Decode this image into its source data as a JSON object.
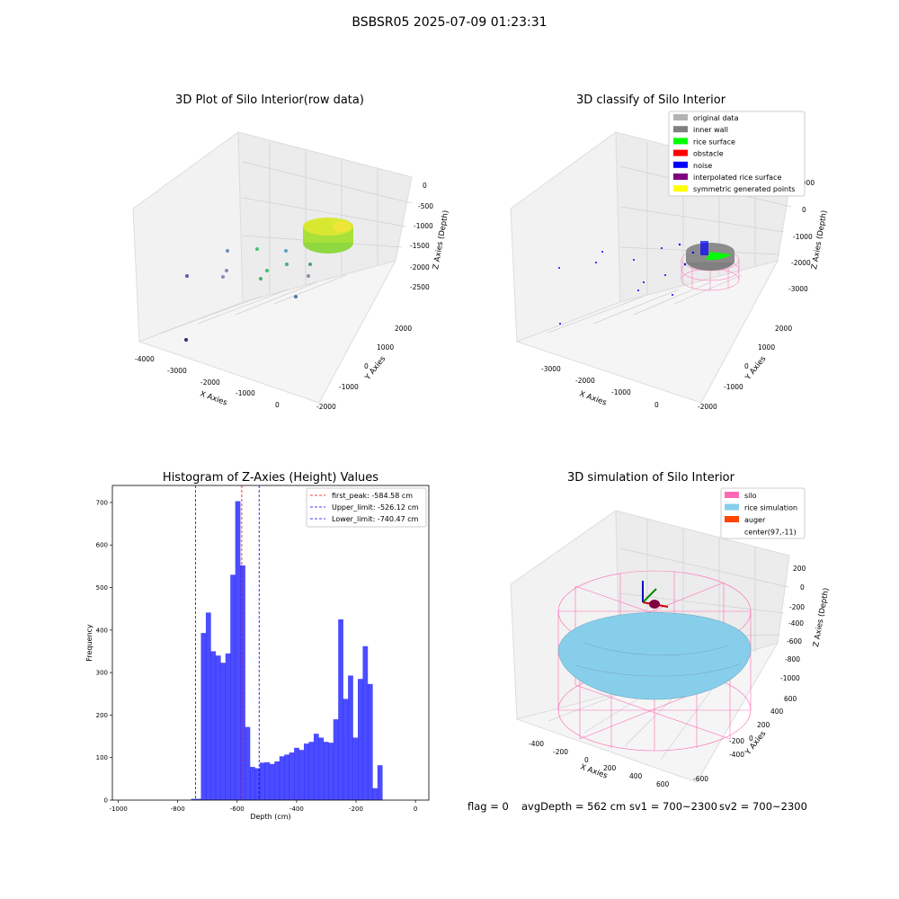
{
  "suptitle": "BSBSR05 2025-07-09 01:23:31",
  "panels": {
    "raw": {
      "title": "3D Plot of Silo Interior(row data)",
      "xlabel": "X Axies",
      "ylabel": "Y Axies",
      "zlabel": "Z Axies (Depth)",
      "xticks": [
        "-4000",
        "-3000",
        "-2000",
        "-1000",
        "0"
      ],
      "yticks": [
        "-2000",
        "-1000",
        "0",
        "1000",
        "2000"
      ],
      "zticks": [
        "0",
        "-500",
        "-1000",
        "-1500",
        "-2000",
        "-2500"
      ]
    },
    "classify": {
      "title": "3D classify of Silo Interior",
      "xlabel": "X Axies",
      "ylabel": "Y Axies",
      "zlabel": "Z Axies (Depth)",
      "xticks": [
        "-3000",
        "-2000",
        "-1000",
        "0"
      ],
      "yticks": [
        "-2000",
        "-1000",
        "0",
        "1000",
        "2000"
      ],
      "zticks": [
        "1000",
        "0",
        "-1000",
        "-2000",
        "-3000"
      ],
      "legend": [
        {
          "label": "original data",
          "color": "#b3b3b3"
        },
        {
          "label": "inner wall",
          "color": "#808080"
        },
        {
          "label": "rice surface",
          "color": "#00ff00"
        },
        {
          "label": "obstacle",
          "color": "#ff0000"
        },
        {
          "label": "noise",
          "color": "#0000ff"
        },
        {
          "label": "interpolated rice surface",
          "color": "#800080"
        },
        {
          "label": "symmetric generated points",
          "color": "#ffff00"
        }
      ]
    },
    "simulation": {
      "title": "3D simulation of Silo Interior",
      "xlabel": "X Axies",
      "ylabel": "Y Axies",
      "zlabel": "Z Axies (Depth)",
      "xticks": [
        "-400",
        "-200",
        "0",
        "200",
        "400",
        "600"
      ],
      "yticks": [
        "-600",
        "-400",
        "-200",
        "0",
        "200",
        "400",
        "600"
      ],
      "zticks": [
        "200",
        "0",
        "-200",
        "-400",
        "-600",
        "-800",
        "-1000"
      ],
      "legend": [
        {
          "label": "silo",
          "color": "#ff69b4"
        },
        {
          "label": "rice simulation",
          "color": "#87ceeb"
        },
        {
          "label": "auger",
          "color": "#ff4500"
        },
        {
          "label": "center(97,-11)",
          "color": ""
        }
      ]
    }
  },
  "status": {
    "flag": "flag = 0",
    "avg": "avgDepth = 562 cm",
    "sv1": "sv1 = 700~2300",
    "sv2": "sv2 = 700~2300"
  },
  "chart_data": [
    {
      "type": "bar",
      "title": "Histogram of Z-Axies (Height) Values",
      "xlabel": "Depth (cm)",
      "ylabel": "Frequency",
      "xlim": [
        -1020,
        45
      ],
      "ylim": [
        0,
        740
      ],
      "xticks": [
        -1000,
        -800,
        -600,
        -400,
        -200,
        0
      ],
      "yticks": [
        0,
        100,
        200,
        300,
        400,
        500,
        600,
        700
      ],
      "bin_width": 16.5,
      "bin_start": -755,
      "values": [
        3,
        3,
        393,
        441,
        350,
        340,
        323,
        345,
        530,
        703,
        552,
        172,
        78,
        75,
        88,
        89,
        85,
        91,
        103,
        107,
        112,
        123,
        118,
        133,
        137,
        156,
        147,
        137,
        135,
        190,
        425,
        238,
        293,
        147,
        285,
        362,
        273,
        28,
        82
      ],
      "color": "#0000ff",
      "vlines": [
        {
          "label": "first_peak: -584.58 cm",
          "x": -584.58,
          "color": "#ff0000"
        },
        {
          "label": "Upper_limit: -526.12 cm",
          "x": -526.12,
          "color": "#0000ff"
        },
        {
          "label": "Lower_limit: -740.47 cm",
          "x": -740.47,
          "color": "#0000ff"
        }
      ],
      "legend_position": "top-right"
    }
  ]
}
